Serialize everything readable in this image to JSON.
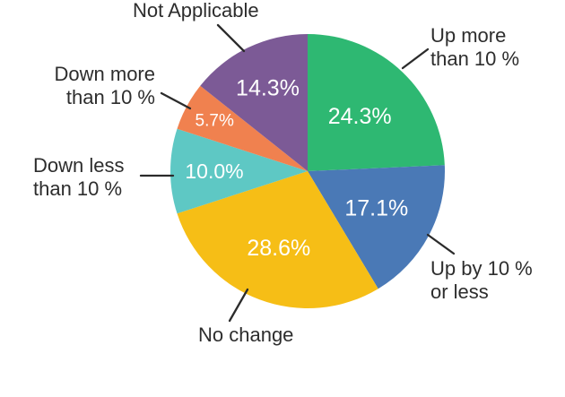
{
  "chart_data": {
    "type": "pie",
    "title": "",
    "direction": "clockwise",
    "start_angle_deg": 0,
    "percent_label_color": "#ffffff",
    "callout_text_color": "#2d2d2d",
    "slices": [
      {
        "label": "Up more than 10 %",
        "value": 24.3,
        "display": "24.3%",
        "color": "#2eb872"
      },
      {
        "label": "Up by 10 % or less",
        "value": 17.1,
        "display": "17.1%",
        "color": "#4a79b6"
      },
      {
        "label": "No change",
        "value": 28.6,
        "display": "28.6%",
        "color": "#f6be16"
      },
      {
        "label": "Down less than 10 %",
        "value": 10.0,
        "display": "10.0%",
        "color": "#5ec8c4"
      },
      {
        "label": "Down more than 10 %",
        "value": 5.7,
        "display": "5.7%",
        "color": "#f0814f"
      },
      {
        "label": "Not Applicable",
        "value": 14.3,
        "display": "14.3%",
        "color": "#7c5a96"
      }
    ]
  },
  "callouts": {
    "not_applicable": [
      "Not Applicable"
    ],
    "up_more": [
      "Up more",
      "than 10 %"
    ],
    "up_by": [
      "Up by 10 %",
      "or less"
    ],
    "no_change": [
      "No change"
    ],
    "down_less": [
      "Down less",
      "than 10 %"
    ],
    "down_more": [
      "Down more",
      "than 10 %"
    ]
  }
}
